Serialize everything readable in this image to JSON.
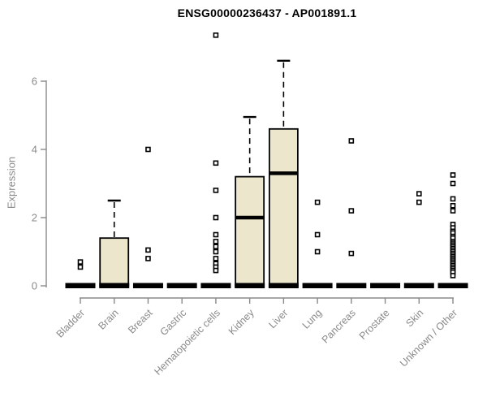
{
  "chart_data": {
    "type": "boxplot",
    "title": "ENSG00000236437 - AP001891.1",
    "ylabel": "Expression",
    "xlabel": "",
    "ylim": [
      0,
      6
    ],
    "yticks": [
      0,
      2,
      4,
      6
    ],
    "grid": false,
    "legend": "none",
    "colors": {
      "box_fill": "#ECE7CC",
      "box_stroke": "#000000",
      "axis": "#8a8a8a",
      "tick_label": "#8a8a8a",
      "title": "#000000"
    },
    "categories": [
      "Bladder",
      "Brain",
      "Breast",
      "Gastric",
      "Hematopoietic cells",
      "Kidney",
      "Liver",
      "Lung",
      "Pancreas",
      "Prostate",
      "Skin",
      "Unknown / Other"
    ],
    "boxes": [
      {
        "category": "Bladder",
        "whisker_low": 0,
        "q1": 0,
        "median": 0,
        "q3": 0,
        "whisker_high": 0,
        "outliers": [
          0.7,
          0.55
        ]
      },
      {
        "category": "Brain",
        "whisker_low": 0,
        "q1": 0,
        "median": 0,
        "q3": 1.4,
        "whisker_high": 2.5,
        "outliers": []
      },
      {
        "category": "Breast",
        "whisker_low": 0,
        "q1": 0,
        "median": 0,
        "q3": 0,
        "whisker_high": 0,
        "outliers": [
          4.0,
          1.05,
          0.8
        ]
      },
      {
        "category": "Gastric",
        "whisker_low": 0,
        "q1": 0,
        "median": 0,
        "q3": 0,
        "whisker_high": 0,
        "outliers": []
      },
      {
        "category": "Hematopoietic cells",
        "whisker_low": 0,
        "q1": 0,
        "median": 0,
        "q3": 0,
        "whisker_high": 0,
        "outliers": [
          7.35,
          3.6,
          2.8,
          2.0,
          1.5,
          1.3,
          1.15,
          1.0,
          0.8,
          0.65,
          0.55,
          0.45
        ]
      },
      {
        "category": "Kidney",
        "whisker_low": 0,
        "q1": 0,
        "median": 2.0,
        "q3": 3.2,
        "whisker_high": 4.95,
        "outliers": []
      },
      {
        "category": "Liver",
        "whisker_low": 0,
        "q1": 0,
        "median": 3.3,
        "q3": 4.6,
        "whisker_high": 6.6,
        "outliers": []
      },
      {
        "category": "Lung",
        "whisker_low": 0,
        "q1": 0,
        "median": 0,
        "q3": 0,
        "whisker_high": 0,
        "outliers": [
          2.45,
          1.5,
          1.0
        ]
      },
      {
        "category": "Pancreas",
        "whisker_low": 0,
        "q1": 0,
        "median": 0,
        "q3": 0,
        "whisker_high": 0,
        "outliers": [
          4.25,
          2.2,
          0.95
        ]
      },
      {
        "category": "Prostate",
        "whisker_low": 0,
        "q1": 0,
        "median": 0,
        "q3": 0,
        "whisker_high": 0,
        "outliers": []
      },
      {
        "category": "Skin",
        "whisker_low": 0,
        "q1": 0,
        "median": 0,
        "q3": 0,
        "whisker_high": 0,
        "outliers": [
          2.7,
          2.45
        ]
      },
      {
        "category": "Unknown / Other",
        "whisker_low": 0,
        "q1": 0,
        "median": 0,
        "q3": 0,
        "whisker_high": 0,
        "outliers": [
          3.25,
          3.0,
          2.55,
          2.35,
          2.2,
          1.8,
          1.7,
          1.6,
          1.55,
          1.45,
          1.4,
          1.3,
          1.25,
          1.2,
          1.15,
          1.1,
          1.05,
          1.0,
          0.95,
          0.9,
          0.85,
          0.8,
          0.75,
          0.7,
          0.65,
          0.6,
          0.55,
          0.5,
          0.45,
          0.4,
          0.3
        ]
      }
    ]
  }
}
